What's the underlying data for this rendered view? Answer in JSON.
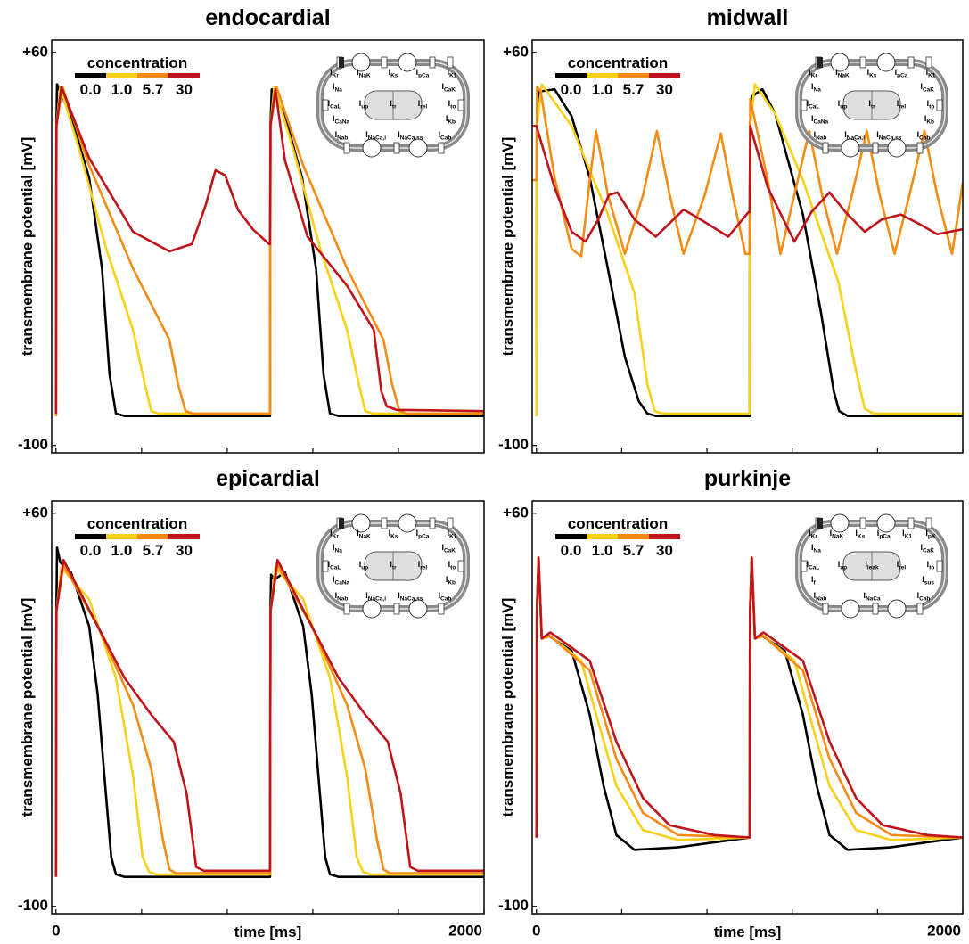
{
  "chart_data": [
    {
      "type": "line",
      "title": "endocardial",
      "ylabel": "transmembrane potential [mV]",
      "xlim": [
        -20,
        2000
      ],
      "ylim": [
        -103,
        65
      ],
      "yticks": [
        {
          "value": 60,
          "label": "+60"
        },
        -100
      ],
      "xminorticks": [
        0,
        400,
        800,
        1200,
        1600,
        2000
      ],
      "legend": "upper left",
      "legend_title": "concentration",
      "series": [
        {
          "name": "0.0",
          "color": "#000000",
          "x": [
            0,
            2,
            5,
            70,
            155,
            215,
            250,
            280,
            320,
            1000,
            1002,
            1008,
            1070,
            1150,
            1215,
            1250,
            1280,
            1320,
            2000
          ],
          "values": [
            -88,
            30,
            47,
            34,
            9,
            -28,
            -71,
            -87,
            -88,
            -88,
            30,
            45,
            34,
            9,
            -28,
            -71,
            -87,
            -88,
            -88
          ]
        },
        {
          "name": "1.0",
          "color": "#f7d117",
          "x": [
            0,
            2,
            20,
            110,
            235,
            360,
            415,
            445,
            480,
            1000,
            1002,
            1020,
            1110,
            1235,
            1360,
            1415,
            1445,
            1480,
            2000
          ],
          "values": [
            -88,
            30,
            46,
            20,
            -20,
            -53,
            -75,
            -86,
            -87,
            -87,
            30,
            46,
            20,
            -20,
            -53,
            -75,
            -86,
            -87,
            -87
          ]
        },
        {
          "name": "5.7",
          "color": "#f58b12",
          "x": [
            0,
            2,
            30,
            155,
            360,
            530,
            570,
            605,
            640,
            1000,
            1002,
            1030,
            1155,
            1360,
            1530,
            1570,
            1605,
            1640,
            2000
          ],
          "values": [
            -88,
            30,
            46,
            14,
            -28,
            -57,
            -75,
            -86,
            -87,
            -87,
            30,
            46,
            14,
            -28,
            -57,
            -75,
            -86,
            -87,
            -87
          ]
        },
        {
          "name": "30",
          "color": "#c0141c",
          "x": [
            0,
            2,
            25,
            155,
            360,
            530,
            635,
            700,
            745,
            790,
            850,
            920,
            995,
            1000,
            1002,
            1025,
            1070,
            1175,
            1360,
            1485,
            1520,
            1545,
            1590,
            2000
          ],
          "values": [
            -87,
            30,
            46,
            17,
            -13,
            -21,
            -18,
            -2,
            12,
            10,
            -4,
            -12,
            -18,
            -18,
            30,
            45,
            16,
            -15,
            -35,
            -53,
            -78,
            -84,
            -85.5,
            -86
          ]
        }
      ],
      "diagram": {
        "rows": [
          [
            "IKr",
            "INaK",
            "IKs",
            "IpCa",
            "IK1"
          ],
          [
            "INa",
            "ICaK"
          ],
          [
            "ICaL",
            "Iup",
            "Itr",
            "Irel",
            "Ito"
          ],
          [
            "ICaNa",
            "IKb"
          ],
          [
            "INab",
            "INaCa,i",
            "INaCa,ss",
            "ICab"
          ]
        ]
      }
    },
    {
      "type": "line",
      "title": "midwall",
      "ylabel": "transmembrane potential [mV]",
      "xlim": [
        -20,
        2000
      ],
      "ylim": [
        -103,
        65
      ],
      "yticks": [
        {
          "value": 60,
          "label": "+60"
        },
        -100
      ],
      "xminorticks": [
        0,
        400,
        800,
        1200,
        1600,
        2000
      ],
      "legend": "upper left",
      "legend_title": "concentration",
      "series": [
        {
          "name": "0.0",
          "color": "#000000",
          "x": [
            0,
            2,
            10,
            85,
            165,
            250,
            335,
            415,
            480,
            520,
            560,
            1000,
            1002,
            1010,
            1060,
            1120,
            1250,
            1335,
            1395,
            1420,
            1460,
            2000
          ],
          "values": [
            -88,
            30,
            44,
            45,
            34,
            9,
            -28,
            -64,
            -82,
            -87,
            -88,
            -88,
            30,
            42,
            45,
            35,
            -6,
            -46,
            -78,
            -86,
            -88,
            -88
          ]
        },
        {
          "name": "1.0",
          "color": "#f7d117",
          "x": [
            0,
            2,
            25,
            165,
            335,
            460,
            520,
            555,
            590,
            1000,
            1002,
            1025,
            1120,
            1250,
            1415,
            1500,
            1540,
            1580,
            2000
          ],
          "values": [
            -88,
            30,
            47,
            30,
            -6,
            -38,
            -75,
            -86,
            -87,
            -87,
            30,
            47,
            35,
            8,
            -33,
            -70,
            -85,
            -87,
            -87
          ]
        },
        {
          "name": "5.7",
          "color": "#f58b12",
          "x": [
            -20,
            0,
            3,
            20,
            85,
            165,
            210,
            250,
            280,
            335,
            415,
            500,
            565,
            625,
            690,
            790,
            865,
            920,
            980,
            1000,
            1003,
            1085,
            1145,
            1210,
            1280,
            1340,
            1410,
            1480,
            1550,
            1610,
            1680,
            1750,
            1820,
            1880,
            1950,
            2000
          ],
          "values": [
            8,
            8,
            46,
            44,
            9,
            -20,
            -23,
            8,
            28,
            2,
            -22,
            2,
            28,
            2,
            -22,
            2,
            27,
            2,
            -22,
            -22,
            41,
            8,
            -22,
            2,
            28,
            2,
            -22,
            2,
            28,
            2,
            -22,
            2,
            28,
            2,
            -22,
            7
          ]
        },
        {
          "name": "30",
          "color": "#c0141c",
          "x": [
            -20,
            0,
            85,
            165,
            230,
            290,
            340,
            380,
            460,
            560,
            690,
            770,
            900,
            995,
            1000,
            1003,
            1085,
            1210,
            1290,
            1375,
            1450,
            1540,
            1620,
            1710,
            1800,
            1880,
            2000
          ],
          "values": [
            30,
            30,
            5,
            -13,
            -17,
            -8,
            2,
            3,
            -8,
            -15,
            -4,
            -8,
            -15,
            -5,
            -5,
            30,
            5,
            -17,
            -5,
            3,
            -5,
            -13,
            -8,
            -6,
            -10,
            -14,
            -12
          ]
        }
      ],
      "diagram": {
        "rows": [
          [
            "IKr",
            "INaK",
            "IKs",
            "IpCa",
            "IK1"
          ],
          [
            "INa",
            "ICaK"
          ],
          [
            "ICaL",
            "Iup",
            "Itr",
            "Irel",
            "Ito"
          ],
          [
            "ICaNa",
            "IKb"
          ],
          [
            "INab",
            "INaCa,i",
            "INaCa,ss",
            "ICab"
          ]
        ]
      }
    },
    {
      "type": "line",
      "title": "epicardial",
      "xlabel": "time [ms]",
      "ylabel": "transmembrane potential [mV]",
      "xlim": [
        -20,
        2000
      ],
      "ylim": [
        -103,
        65
      ],
      "yticks": [
        {
          "value": 60,
          "label": "+60"
        },
        -100
      ],
      "xticks": [
        0,
        2000
      ],
      "xminorticks": [
        0,
        400,
        800,
        1200,
        1600,
        2000
      ],
      "legend": "upper left",
      "legend_title": "concentration",
      "series": [
        {
          "name": "0.0",
          "color": "#000000",
          "x": [
            0,
            2,
            5,
            20,
            70,
            155,
            195,
            230,
            258,
            280,
            320,
            1000,
            1002,
            1005,
            1020,
            1070,
            1155,
            1195,
            1230,
            1258,
            1280,
            1320,
            2000
          ],
          "values": [
            -88,
            20,
            46,
            40,
            36,
            14,
            -14,
            -51,
            -80,
            -87,
            -88,
            -88,
            20,
            35,
            33,
            36,
            14,
            -14,
            -51,
            -80,
            -87,
            -88,
            -88
          ]
        },
        {
          "name": "1.0",
          "color": "#f7d117",
          "x": [
            0,
            2,
            25,
            155,
            280,
            360,
            405,
            435,
            470,
            1000,
            1002,
            1025,
            1155,
            1280,
            1360,
            1405,
            1435,
            1470,
            2000
          ],
          "values": [
            -88,
            20,
            38,
            25,
            -7,
            -47,
            -80,
            -86,
            -87,
            -87,
            20,
            38,
            25,
            -7,
            -47,
            -80,
            -86,
            -87,
            -87
          ]
        },
        {
          "name": "5.7",
          "color": "#f58b12",
          "x": [
            0,
            2,
            35,
            195,
            360,
            445,
            500,
            530,
            560,
            1000,
            1002,
            1035,
            1195,
            1360,
            1445,
            1500,
            1530,
            1560,
            2000
          ],
          "values": [
            -88,
            20,
            39,
            14,
            -18,
            -44,
            -73,
            -85,
            -86.5,
            -86.5,
            20,
            39,
            14,
            -18,
            -44,
            -73,
            -85,
            -86.5,
            -86.5
          ]
        },
        {
          "name": "30",
          "color": "#c0141c",
          "x": [
            0,
            2,
            35,
            195,
            320,
            445,
            550,
            610,
            655,
            690,
            730,
            1000,
            1002,
            1035,
            1195,
            1320,
            1445,
            1550,
            1610,
            1655,
            1690,
            1730,
            2000
          ],
          "values": [
            -88,
            20,
            41,
            14,
            -7,
            -22,
            -33,
            -54,
            -84,
            -85.5,
            -85.5,
            -85.5,
            20,
            41,
            14,
            -7,
            -22,
            -33,
            -54,
            -84,
            -85.5,
            -85.5,
            -85.5
          ]
        }
      ],
      "diagram": {
        "rows": [
          [
            "IKr",
            "INaK",
            "IKs",
            "IpCa",
            "IK1"
          ],
          [
            "INa",
            "ICaK"
          ],
          [
            "ICaL",
            "Iup",
            "Itr",
            "Irel",
            "Ito"
          ],
          [
            "ICaNa",
            "IKb"
          ],
          [
            "INab",
            "INaCa,i",
            "INaCa,ss",
            "ICab"
          ]
        ]
      }
    },
    {
      "type": "line",
      "title": "purkinje",
      "xlabel": "time [ms]",
      "ylabel": "transmembrane potential [mV]",
      "xlim": [
        -20,
        2000
      ],
      "ylim": [
        -103,
        65
      ],
      "yticks": [
        {
          "value": 60,
          "label": "+60"
        },
        -100
      ],
      "xticks": [
        0,
        2000
      ],
      "xminorticks": [
        0,
        400,
        800,
        1200,
        1600,
        2000
      ],
      "legend": "upper left",
      "legend_title": "concentration",
      "series": [
        {
          "name": "0.0",
          "color": "#000000",
          "x": [
            0,
            2,
            10,
            25,
            60,
            165,
            250,
            315,
            375,
            460,
            660,
            1000,
            1002,
            1010,
            1025,
            1060,
            1165,
            1250,
            1315,
            1375,
            1460,
            1660,
            2000
          ],
          "values": [
            -72,
            20,
            42,
            9,
            10,
            4,
            -22,
            -51,
            -71,
            -77,
            -76,
            -72,
            20,
            42,
            9,
            10,
            4,
            -22,
            -51,
            -71,
            -77,
            -76,
            -72
          ]
        },
        {
          "name": "1.0",
          "color": "#f7d117",
          "x": [
            0,
            2,
            10,
            25,
            65,
            210,
            290,
            375,
            500,
            665,
            1000,
            1002,
            1010,
            1025,
            1065,
            1210,
            1290,
            1375,
            1500,
            1665,
            2000
          ],
          "values": [
            -72,
            20,
            42,
            9,
            10,
            0,
            -25,
            -51,
            -69,
            -73,
            -72,
            20,
            42,
            9,
            10,
            0,
            -25,
            -51,
            -69,
            -73,
            -72
          ]
        },
        {
          "name": "5.7",
          "color": "#f58b12",
          "x": [
            0,
            2,
            10,
            25,
            65,
            250,
            375,
            500,
            665,
            1000,
            1002,
            1010,
            1025,
            1065,
            1250,
            1375,
            1500,
            1665,
            2000
          ],
          "values": [
            -72,
            20,
            42,
            9,
            10,
            -4,
            -40,
            -62,
            -71,
            -72,
            20,
            42,
            9,
            10,
            -4,
            -40,
            -62,
            -71,
            -72
          ]
        },
        {
          "name": "30",
          "color": "#c0141c",
          "x": [
            0,
            2,
            10,
            25,
            65,
            250,
            375,
            500,
            625,
            835,
            1000,
            1002,
            1010,
            1025,
            1065,
            1250,
            1375,
            1500,
            1625,
            1835,
            2000
          ],
          "values": [
            -72,
            20,
            42,
            9,
            11.5,
            0,
            -33,
            -56,
            -67,
            -71,
            -72,
            20,
            42,
            9,
            11.5,
            0,
            -33,
            -56,
            -67,
            -71,
            -72
          ]
        }
      ],
      "diagram": {
        "rows": [
          [
            "IKr",
            "INaK",
            "IKs",
            "IpCa",
            "IK1",
            "IpK"
          ],
          [
            "INa",
            "ICaK"
          ],
          [
            "ICaL",
            "Iup",
            "Ileak",
            "Irel",
            "Ito"
          ],
          [
            "If",
            "Isus"
          ],
          [
            "INab",
            "INaCa",
            "ICab"
          ]
        ]
      }
    }
  ]
}
